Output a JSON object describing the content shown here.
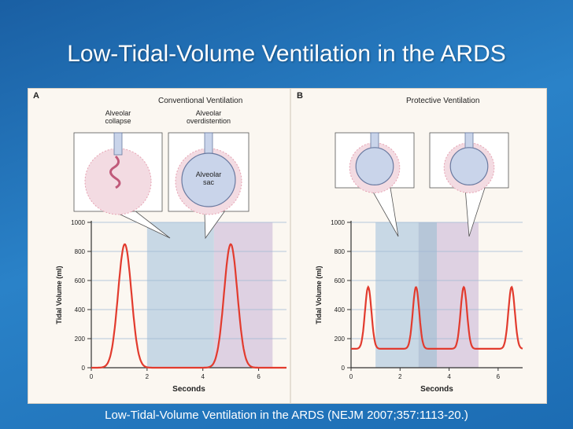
{
  "slide": {
    "title": "Low-Tidal-Volume Ventilation in the ARDS",
    "caption_main": "Low-Tidal-Volume Ventilation in the ARDS (",
    "caption_cite": "NEJM 2007;357:1113-20.",
    "caption_close": ")"
  },
  "chart_data": [
    {
      "type": "line",
      "panel_label": "A",
      "title": "Conventional Ventilation",
      "xlabel": "Seconds",
      "ylabel": "Tidal Volume (ml)",
      "xlim": [
        0,
        7
      ],
      "ylim": [
        0,
        1000
      ],
      "x_ticks": [
        "0",
        "2",
        "4",
        "6"
      ],
      "y_ticks": [
        "0",
        "200",
        "400",
        "600",
        "800",
        "1000"
      ],
      "peaks": [
        {
          "x": 1.2,
          "y": 850
        },
        {
          "x": 5.0,
          "y": 850
        }
      ],
      "peak_width": 0.4,
      "baseline": 0,
      "shaded_regions": [
        {
          "x0": 2.0,
          "x1": 4.4,
          "color": "#b7cde0"
        },
        {
          "x0": 4.4,
          "x1": 6.5,
          "color": "#d4c4dc"
        }
      ],
      "insets": [
        {
          "label": "Alveolar\ncollapse",
          "sac_label": "",
          "state": "collapse"
        },
        {
          "label": "Alveolar\noverdistention",
          "sac_label": "Alveolar\nsac",
          "state": "overdistention"
        }
      ]
    },
    {
      "type": "line",
      "panel_label": "B",
      "title": "Protective Ventilation",
      "xlabel": "Seconds",
      "ylabel": "Tidal Volume (ml)",
      "xlim": [
        0,
        7
      ],
      "ylim": [
        0,
        1000
      ],
      "x_ticks": [
        "0",
        "2",
        "4",
        "6"
      ],
      "y_ticks": [
        "0",
        "200",
        "400",
        "600",
        "800",
        "1000"
      ],
      "peaks": [
        {
          "x": 0.7,
          "y": 555
        },
        {
          "x": 2.65,
          "y": 555
        },
        {
          "x": 4.6,
          "y": 555
        },
        {
          "x": 6.55,
          "y": 555
        }
      ],
      "peak_width": 0.22,
      "baseline": 130,
      "shaded_regions": [
        {
          "x0": 1.0,
          "x1": 2.75,
          "color": "#b7cde0"
        },
        {
          "x0": 2.75,
          "x1": 3.5,
          "color": "#9fb6cf"
        },
        {
          "x0": 3.5,
          "x1": 5.2,
          "color": "#d4c4dc"
        }
      ],
      "insets": [
        {
          "label": "",
          "sac_label": "",
          "state": "protected"
        },
        {
          "label": "",
          "sac_label": "",
          "state": "protected"
        }
      ]
    }
  ],
  "colors": {
    "curve": "#e23b2e",
    "grid": "#9fb7d3",
    "axis": "#333333",
    "pink": "#e6a3b3",
    "sac_fill": "#c9d4ea"
  }
}
